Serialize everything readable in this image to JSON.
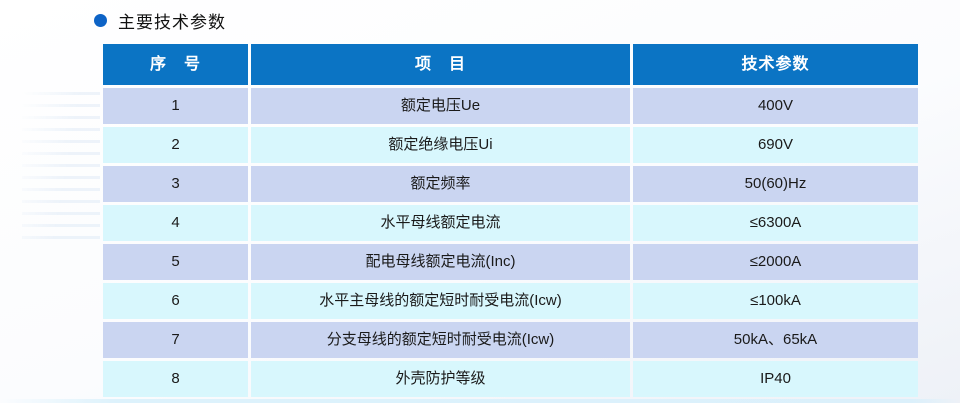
{
  "page": {
    "title": "主要技术参数"
  },
  "colors": {
    "header_bg": "#0b74c4",
    "row_odd_bg": "#cad5f1",
    "row_even_bg": "#d8f7fd",
    "bullet": "#0d63c6"
  },
  "table": {
    "headers": [
      "序　号",
      "项　目",
      "技术参数"
    ],
    "rows": [
      {
        "no": "1",
        "item": "额定电压Ue",
        "value": "400V"
      },
      {
        "no": "2",
        "item": "额定绝缘电压Ui",
        "value": "690V"
      },
      {
        "no": "3",
        "item": "额定频率",
        "value": "50(60)Hz"
      },
      {
        "no": "4",
        "item": "水平母线额定电流",
        "value": "≤6300A"
      },
      {
        "no": "5",
        "item": "配电母线额定电流(Inc)",
        "value": "≤2000A"
      },
      {
        "no": "6",
        "item": "水平主母线的额定短时耐受电流(Icw)",
        "value": "≤100kA"
      },
      {
        "no": "7",
        "item": "分支母线的额定短时耐受电流(Icw)",
        "value": "50kA、65kA"
      },
      {
        "no": "8",
        "item": "外壳防护等级",
        "value": "IP40"
      }
    ]
  }
}
